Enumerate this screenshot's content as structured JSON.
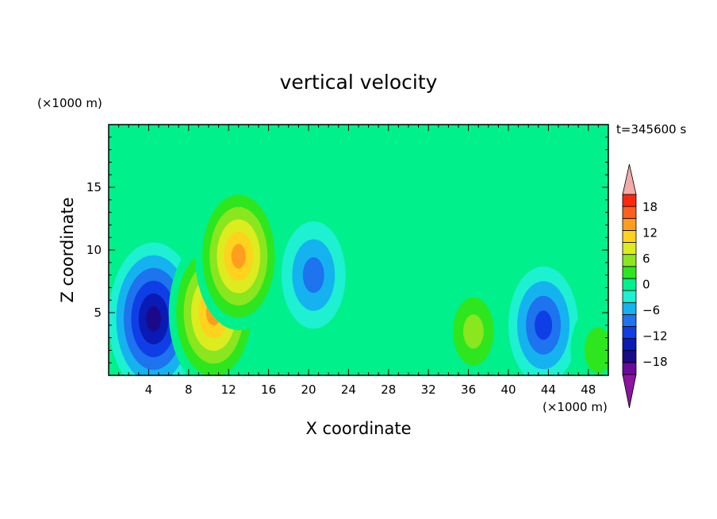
{
  "chart_data": {
    "type": "heatmap",
    "title": "vertical velocity",
    "xlabel": "X coordinate",
    "ylabel": "Z coordinate",
    "x_unit": "(×1000 m)",
    "y_unit": "(×1000 m)",
    "time_label": "t=345600 s",
    "xlim": [
      0,
      50
    ],
    "ylim": [
      0,
      20
    ],
    "x_ticks": [
      4,
      8,
      12,
      16,
      20,
      24,
      28,
      32,
      36,
      40,
      44,
      48
    ],
    "y_ticks": [
      5,
      10,
      15
    ],
    "colorbar": {
      "tick_values": [
        18,
        12,
        6,
        0,
        -6,
        -12,
        -18
      ],
      "tick_labels": [
        "18",
        "12",
        "6",
        "0",
        "−6",
        "−12",
        "−18"
      ],
      "levels": [
        -21,
        -18,
        -15,
        -12,
        -9,
        -6,
        -3,
        0,
        3,
        6,
        9,
        12,
        15,
        18,
        21
      ],
      "colors": [
        "#6a0a9a",
        "#1a0a8a",
        "#0a1ab4",
        "#0f3ee6",
        "#1e73ee",
        "#14b3f0",
        "#1ef0d2",
        "#00f08c",
        "#2ee61e",
        "#8ae61e",
        "#dcec1e",
        "#ffd21e",
        "#ff9e1e",
        "#ff5f1e",
        "#ff280f"
      ],
      "under_color": "#8b14a0",
      "over_color": "#f2aaaa",
      "extend": "both"
    },
    "background_value": 0,
    "features": [
      {
        "kind": "downdraft",
        "x": 4.5,
        "z": 4.5,
        "peak": -17
      },
      {
        "kind": "updraft",
        "x": 10.5,
        "z": 5.0,
        "peak": 17
      },
      {
        "kind": "updraft",
        "x": 13.0,
        "z": 9.5,
        "peak": 16
      },
      {
        "kind": "downdraft",
        "x": 20.5,
        "z": 8.0,
        "peak": -8
      },
      {
        "kind": "updraft",
        "x": 36.5,
        "z": 3.5,
        "peak": 7
      },
      {
        "kind": "downdraft",
        "x": 43.5,
        "z": 4.0,
        "peak": -10
      },
      {
        "kind": "updraft",
        "x": 30.0,
        "z": 10.0,
        "peak": 2
      },
      {
        "kind": "updraft",
        "x": 49.0,
        "z": 2.0,
        "peak": 5
      }
    ]
  }
}
